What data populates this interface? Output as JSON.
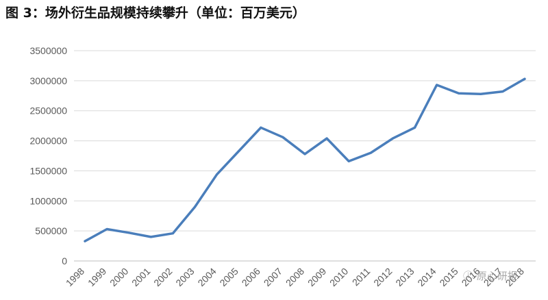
{
  "figure_title": "图 3：场外衍生品规模持续攀升（单位：百万美元）",
  "watermark": "ⓘ 原心研报",
  "colors": {
    "line": "#4a7ebb",
    "grid": "#d9d9d9",
    "axis": "#bfbfbf",
    "tick": "#595959"
  },
  "chart_data": {
    "type": "line",
    "title": "",
    "xlabel": "",
    "ylabel": "",
    "ylim": [
      0,
      3500000
    ],
    "y_ticks": [
      0,
      500000,
      1000000,
      1500000,
      2000000,
      2500000,
      3000000,
      3500000
    ],
    "y_tick_labels": [
      "0",
      "500000",
      "1000000",
      "1500000",
      "2000000",
      "2500000",
      "3000000",
      "3500000"
    ],
    "grid": true,
    "legend": "none",
    "categories": [
      "1998",
      "1999",
      "2000",
      "2001",
      "2002",
      "2003",
      "2004",
      "2005",
      "2006",
      "2007",
      "2008",
      "2009",
      "2010",
      "2011",
      "2012",
      "2013",
      "2014",
      "2015",
      "2016",
      "2017",
      "2018"
    ],
    "series": [
      {
        "values": [
          330000,
          530000,
          470000,
          400000,
          460000,
          900000,
          1440000,
          1830000,
          2220000,
          2060000,
          1780000,
          2040000,
          1660000,
          1800000,
          2040000,
          2220000,
          2930000,
          2790000,
          2780000,
          2820000,
          3030000
        ]
      }
    ]
  }
}
